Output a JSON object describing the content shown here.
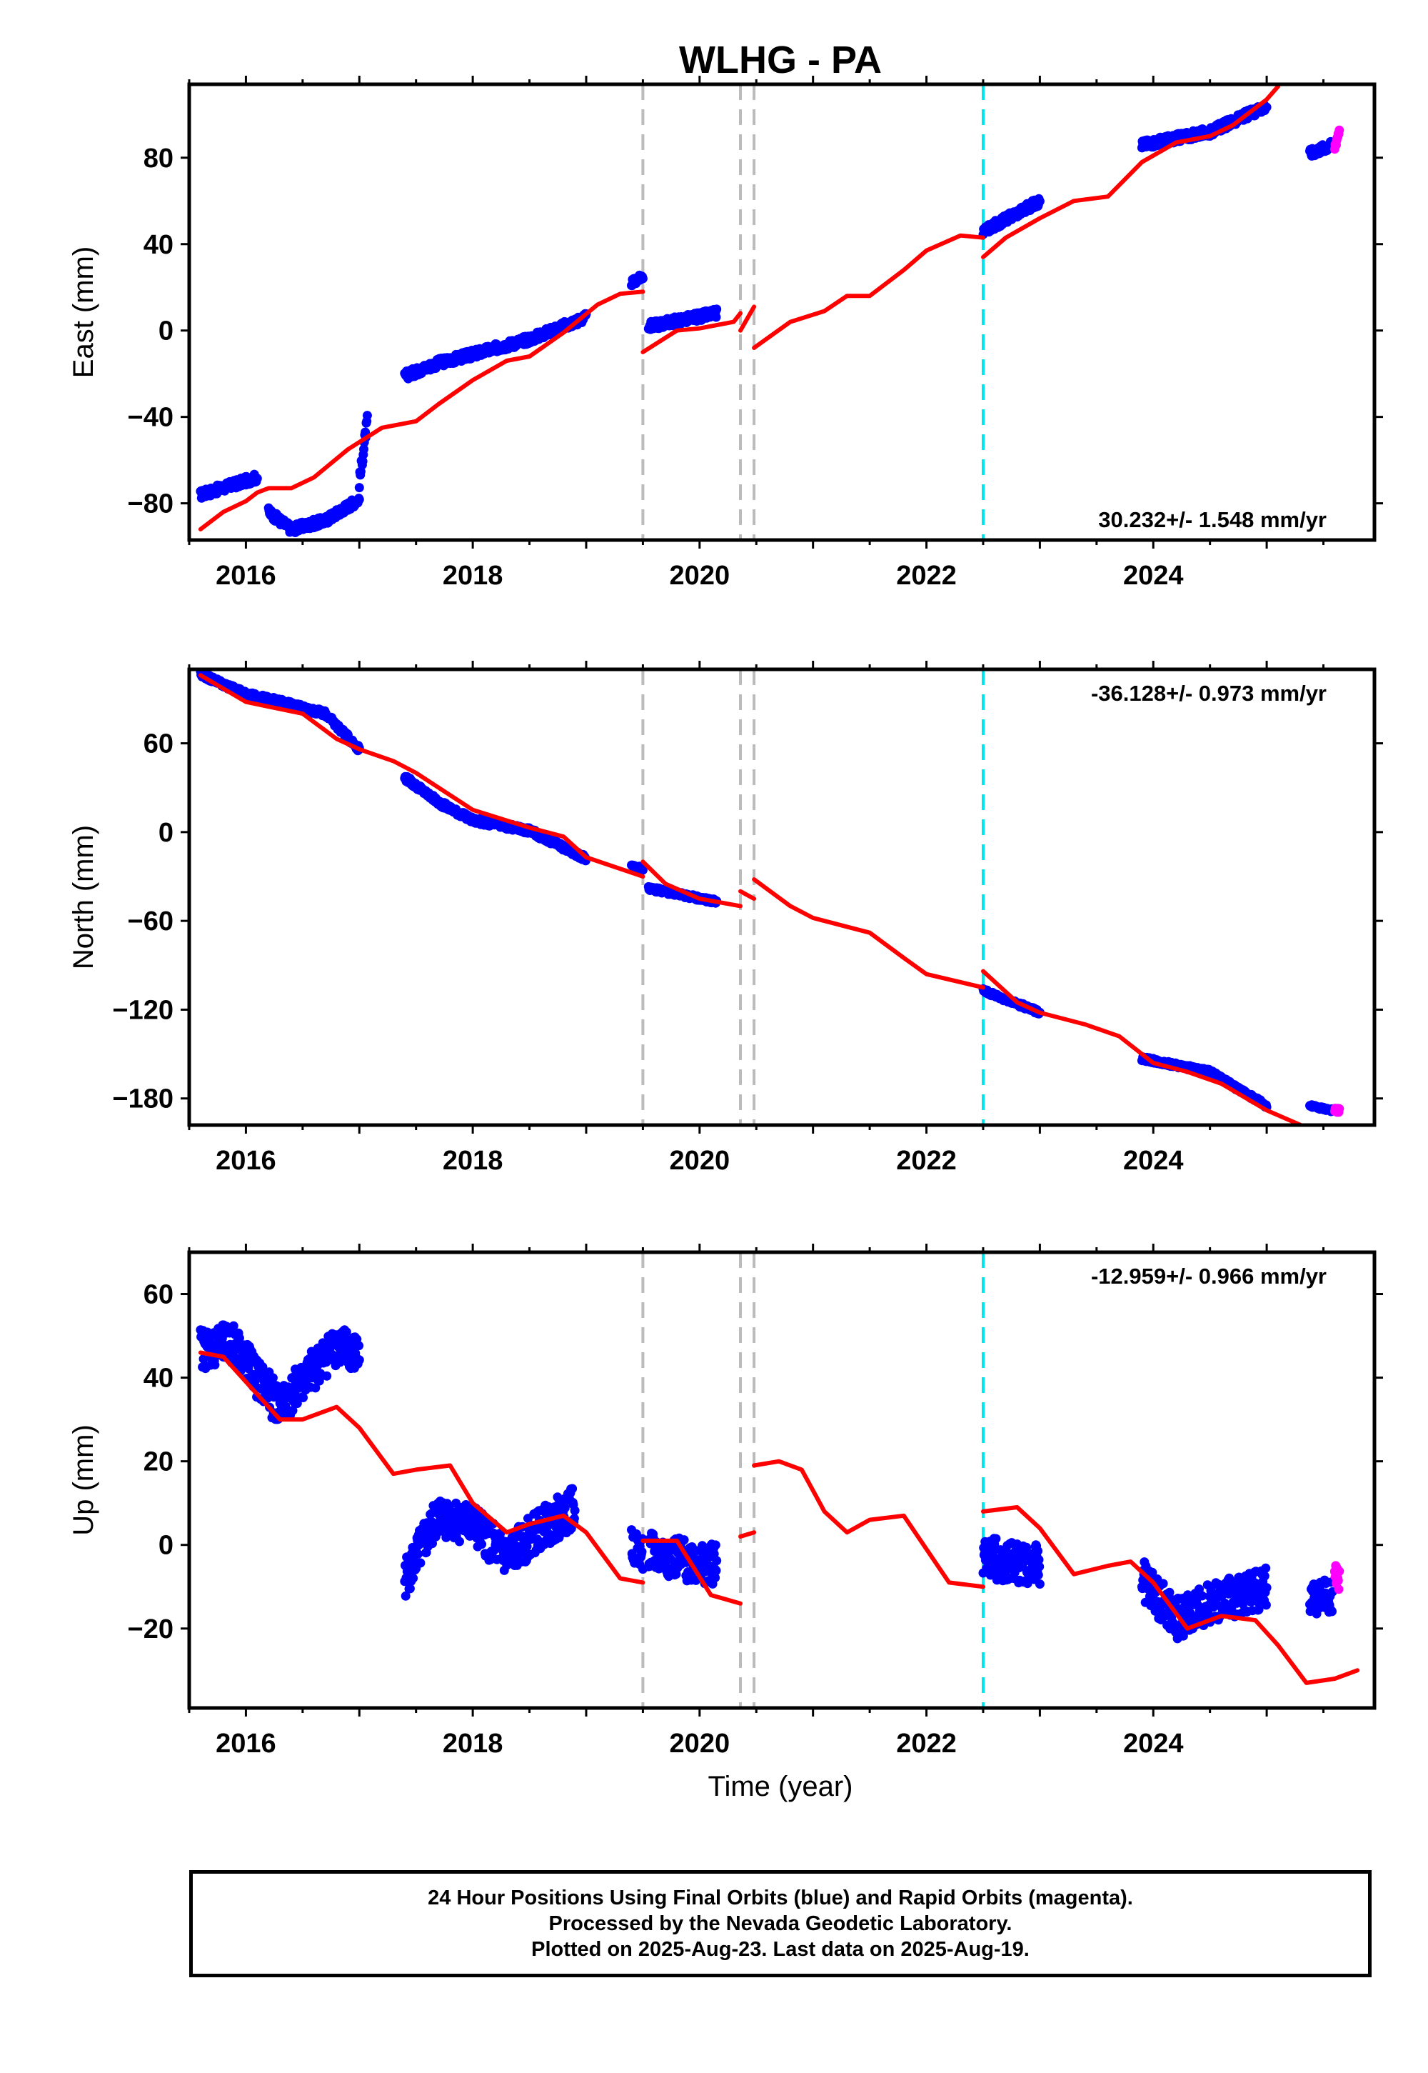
{
  "chart_data": {
    "type": "scatter",
    "title": "WLHG - PA",
    "xlabel": "Time (year)",
    "xlim": [
      2015.5,
      2025.95
    ],
    "xticks": [
      2016,
      2018,
      2020,
      2022,
      2024
    ],
    "equipment_change_lines": [
      2019.5,
      2020.36,
      2020.48
    ],
    "earthquake_lines": [
      2022.5
    ],
    "colors": {
      "final_orbits": "#0000ff",
      "rapid_orbits": "#ff00ff",
      "model": "#ff0000",
      "equipment_change": "#bbbbbb",
      "earthquake": "#00e5ee"
    },
    "panels": [
      {
        "name": "east",
        "ylabel": "East (mm)",
        "ylim": [
          -97,
          114
        ],
        "yticks": [
          -80,
          -40,
          0,
          40,
          80
        ],
        "rate_label": "30.232+/- 1.548 mm/yr",
        "rate_label_position": "bottom-right",
        "final_segments": [
          {
            "x": [
              2015.6,
              2016.1
            ],
            "y": [
              -76,
              -68
            ],
            "noise": 2
          },
          {
            "x": [
              2016.2,
              2016.4,
              2016.7,
              2017.0
            ],
            "y": [
              -84,
              -92,
              -88,
              -78
            ],
            "noise": 2
          },
          {
            "x": [
              2017.0,
              2017.07
            ],
            "y": [
              -70,
              -42
            ],
            "noise": 3
          },
          {
            "x": [
              2017.4,
              2017.7,
              2018.0,
              2018.5,
              2019.0
            ],
            "y": [
              -21,
              -15,
              -11,
              -4,
              6
            ],
            "noise": 2
          },
          {
            "x": [
              2019.4,
              2019.5
            ],
            "y": [
              22,
              25
            ],
            "noise": 1.5
          },
          {
            "x": [
              2019.55,
              2020.15
            ],
            "y": [
              2,
              8
            ],
            "noise": 2
          },
          {
            "x": [
              2022.5,
              2023.0
            ],
            "y": [
              46,
              60
            ],
            "noise": 2
          },
          {
            "x": [
              2023.9,
              2024.5,
              2025.0
            ],
            "y": [
              86,
              92,
              104
            ],
            "noise": 2
          },
          {
            "x": [
              2025.38,
              2025.58
            ],
            "y": [
              82,
              86
            ],
            "noise": 2
          }
        ],
        "rapid_segments": [
          {
            "x": [
              2025.6,
              2025.64
            ],
            "y": [
              85,
              93
            ],
            "noise": 2
          }
        ],
        "model_segments": [
          {
            "x": [
              2015.6,
              2015.8,
              2016.0,
              2016.1,
              2016.2,
              2016.4,
              2016.6,
              2016.9,
              2017.2,
              2017.5,
              2017.7,
              2018.0,
              2018.3,
              2018.5,
              2018.8,
              2019.1,
              2019.3,
              2019.5
            ],
            "y": [
              -92,
              -84,
              -79,
              -75,
              -73,
              -73,
              -68,
              -55,
              -45,
              -42,
              -34,
              -23,
              -14,
              -12,
              -1,
              12,
              17,
              18
            ]
          },
          {
            "x": [
              2019.5,
              2019.8,
              2020.0,
              2020.3,
              2020.36
            ],
            "y": [
              -10,
              0,
              1,
              4,
              8
            ]
          },
          {
            "x": [
              2020.36,
              2020.48
            ],
            "y": [
              0,
              11
            ]
          },
          {
            "x": [
              2020.48,
              2020.8,
              2021.1,
              2021.3,
              2021.5,
              2021.8,
              2022.0,
              2022.3,
              2022.5
            ],
            "y": [
              -8,
              4,
              9,
              16,
              16,
              28,
              37,
              44,
              43
            ]
          },
          {
            "x": [
              2022.5,
              2022.7,
              2023.0,
              2023.3,
              2023.6,
              2023.9,
              2024.2,
              2024.5,
              2024.7,
              2025.0,
              2025.1
            ],
            "y": [
              34,
              43,
              52,
              60,
              62,
              78,
              87,
              90,
              95,
              107,
              113
            ]
          }
        ]
      },
      {
        "name": "north",
        "ylabel": "North (mm)",
        "ylim": [
          -198,
          110
        ],
        "yticks": [
          -180,
          -120,
          -60,
          0,
          60
        ],
        "rate_label": "-36.128+/- 0.973 mm/yr",
        "rate_label_position": "top-right",
        "final_segments": [
          {
            "x": [
              2015.6,
              2016.0,
              2016.3,
              2016.7,
              2017.0
            ],
            "y": [
              107,
              93,
              88,
              80,
              56
            ],
            "noise": 2
          },
          {
            "x": [
              2017.4,
              2017.7,
              2018.0,
              2018.5,
              2019.0
            ],
            "y": [
              37,
              20,
              8,
              1,
              -18
            ],
            "noise": 2
          },
          {
            "x": [
              2019.4,
              2019.5
            ],
            "y": [
              -23,
              -25
            ],
            "noise": 1.5
          },
          {
            "x": [
              2019.55,
              2020.15
            ],
            "y": [
              -38,
              -47
            ],
            "noise": 1.5
          },
          {
            "x": [
              2022.5,
              2023.0
            ],
            "y": [
              -107,
              -122
            ],
            "noise": 1.5
          },
          {
            "x": [
              2023.9,
              2024.5,
              2025.0
            ],
            "y": [
              -153,
              -162,
              -185
            ],
            "noise": 1.5
          },
          {
            "x": [
              2025.38,
              2025.58
            ],
            "y": [
              -185,
              -188
            ],
            "noise": 1
          }
        ],
        "rapid_segments": [
          {
            "x": [
              2025.6,
              2025.64
            ],
            "y": [
              -188,
              -188
            ],
            "noise": 1.5
          }
        ],
        "model_segments": [
          {
            "x": [
              2015.6,
              2016.0,
              2016.5,
              2016.8,
              2017.0,
              2017.3,
              2017.5,
              2017.8,
              2018.0,
              2018.5,
              2018.8,
              2019.0,
              2019.5
            ],
            "y": [
              106,
              88,
              80,
              63,
              56,
              48,
              40,
              25,
              15,
              3,
              -3,
              -17,
              -30
            ]
          },
          {
            "x": [
              2019.5,
              2019.7,
              2020.0,
              2020.36
            ],
            "y": [
              -20,
              -35,
              -45,
              -50
            ]
          },
          {
            "x": [
              2020.36,
              2020.48
            ],
            "y": [
              -40,
              -45
            ]
          },
          {
            "x": [
              2020.48,
              2020.8,
              2021.0,
              2021.5,
              2021.8,
              2022.0,
              2022.5
            ],
            "y": [
              -32,
              -50,
              -58,
              -68,
              -85,
              -96,
              -105
            ]
          },
          {
            "x": [
              2022.5,
              2022.8,
              2023.0,
              2023.4,
              2023.7,
              2024.0,
              2024.3,
              2024.6,
              2025.0,
              2025.3
            ],
            "y": [
              -94,
              -115,
              -122,
              -130,
              -138,
              -156,
              -162,
              -170,
              -188,
              -198
            ]
          }
        ]
      },
      {
        "name": "up",
        "ylabel": "Up (mm)",
        "ylim": [
          -39,
          70
        ],
        "yticks": [
          -20,
          0,
          20,
          40,
          60
        ],
        "rate_label": "-12.959+/- 0.966 mm/yr",
        "rate_label_position": "top-right",
        "final_segments": [
          {
            "x": [
              2015.6,
              2015.9,
              2016.1,
              2016.3,
              2016.5,
              2016.8,
              2017.0
            ],
            "y": [
              47,
              48,
              40,
              33,
              39,
              48,
              45
            ],
            "noise": 5
          },
          {
            "x": [
              2017.4,
              2017.7,
              2018.0,
              2018.3,
              2018.6,
              2018.9
            ],
            "y": [
              -8,
              7,
              5,
              -3,
              4,
              9
            ],
            "noise": 5
          },
          {
            "x": [
              2019.4,
              2019.5
            ],
            "y": [
              0,
              -2
            ],
            "noise": 4
          },
          {
            "x": [
              2019.55,
              2020.15
            ],
            "y": [
              -2,
              -5
            ],
            "noise": 5
          },
          {
            "x": [
              2022.5,
              2023.0
            ],
            "y": [
              -3,
              -5
            ],
            "noise": 5
          },
          {
            "x": [
              2023.9,
              2024.2,
              2024.5,
              2025.0
            ],
            "y": [
              -8,
              -18,
              -14,
              -10
            ],
            "noise": 5
          },
          {
            "x": [
              2025.38,
              2025.58
            ],
            "y": [
              -13,
              -12
            ],
            "noise": 4
          }
        ],
        "rapid_segments": [
          {
            "x": [
              2025.6,
              2025.64
            ],
            "y": [
              -6,
              -8
            ],
            "noise": 3
          }
        ],
        "model_segments": [
          {
            "x": [
              2015.6,
              2015.8,
              2016.0,
              2016.3,
              2016.5,
              2016.8,
              2017.0,
              2017.3,
              2017.5,
              2017.8,
              2018.0,
              2018.3,
              2018.5,
              2018.8,
              2019.0,
              2019.3,
              2019.5
            ],
            "y": [
              46,
              45,
              39,
              30,
              30,
              33,
              28,
              17,
              18,
              19,
              10,
              3,
              5,
              7,
              3,
              -8,
              -9
            ]
          },
          {
            "x": [
              2019.5,
              2019.8,
              2020.1,
              2020.36
            ],
            "y": [
              1,
              1,
              -12,
              -14
            ]
          },
          {
            "x": [
              2020.36,
              2020.48
            ],
            "y": [
              2,
              3
            ]
          },
          {
            "x": [
              2020.48,
              2020.7,
              2020.9,
              2021.1,
              2021.3,
              2021.5,
              2021.8,
              2022.0,
              2022.2,
              2022.5
            ],
            "y": [
              19,
              20,
              18,
              8,
              3,
              6,
              7,
              -1,
              -9,
              -10
            ]
          },
          {
            "x": [
              2022.5,
              2022.8,
              2023.0,
              2023.3,
              2023.6,
              2023.8,
              2024.0,
              2024.3,
              2024.6,
              2024.9,
              2025.1,
              2025.35,
              2025.6,
              2025.8
            ],
            "y": [
              8,
              9,
              4,
              -7,
              -5,
              -4,
              -9,
              -20,
              -17,
              -18,
              -24,
              -33,
              -32,
              -30
            ]
          }
        ]
      }
    ]
  },
  "footer": {
    "line1": "24 Hour Positions Using Final Orbits (blue) and Rapid Orbits (magenta).",
    "line2": "Processed by the Nevada Geodetic Laboratory.",
    "line3": "Plotted on 2025-Aug-23. Last data on 2025-Aug-19."
  }
}
